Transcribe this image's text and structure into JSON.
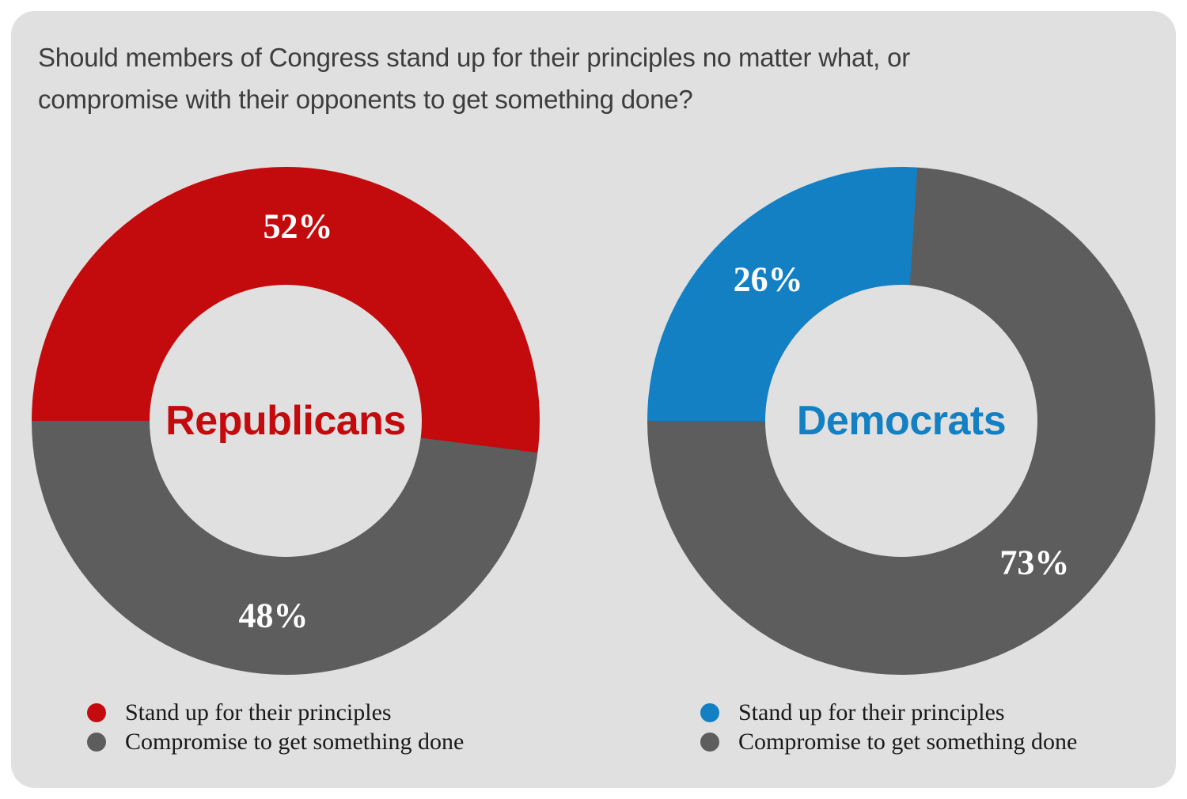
{
  "page": {
    "title_line1": "Should members of Congress stand up for their principles no matter what, or",
    "title_line2": "compromise with their opponents to get something done?"
  },
  "colors": {
    "card_bg": "#e0e0e0",
    "republican_red": "#c30b0e",
    "democrat_blue": "#1480c4",
    "compromise_gray": "#5d5d5d",
    "title_text": "#3d3d3d",
    "legend_text": "#1a1a1a",
    "pct_label_text": "#ffffff"
  },
  "chart_data": {
    "type": "pie",
    "subtype": "donut",
    "question": "Should members of Congress stand up for their principles no matter what, or compromise with their opponents to get something done?",
    "start_angle": "9 o'clock, sweeping clockwise",
    "legend_position": "bottom",
    "charts": [
      {
        "group": "Republicans",
        "center_label": "Republicans",
        "center_label_color": "#c30b0e",
        "segments": [
          {
            "label": "Stand up for their principles",
            "value": 52,
            "display": "52%",
            "color": "#c30b0e"
          },
          {
            "label": "Compromise to get something done",
            "value": 48,
            "display": "48%",
            "color": "#5d5d5d"
          }
        ]
      },
      {
        "group": "Democrats",
        "center_label": "Democrats",
        "center_label_color": "#1480c4",
        "segments": [
          {
            "label": "Stand up for their principles",
            "value": 26,
            "display": "26%",
            "color": "#1480c4"
          },
          {
            "label": "Compromise to get something done",
            "value": 73,
            "display": "73%",
            "color": "#5d5d5d"
          }
        ]
      }
    ]
  }
}
